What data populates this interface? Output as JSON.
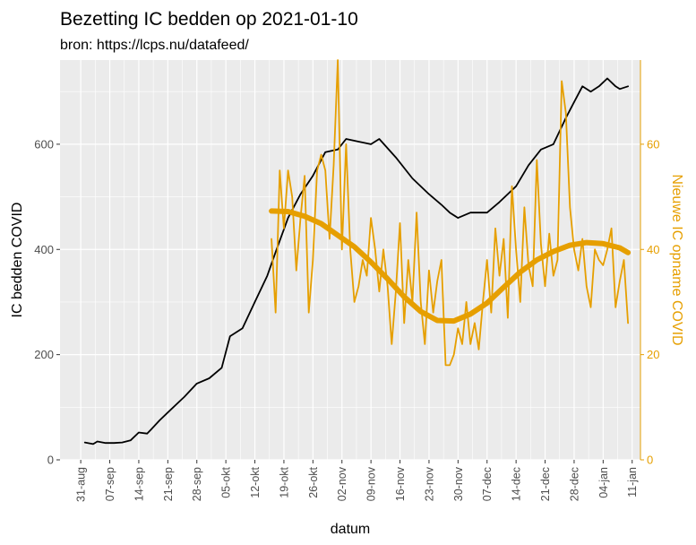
{
  "chart_data": {
    "type": "line",
    "title": "Bezetting IC bedden op 2021-01-10",
    "subtitle": "bron: https://lcps.nu/datafeed/",
    "xlabel": "datum",
    "ylabel": "IC bedden COVID",
    "y2label": "Nieuwe IC opname COVID",
    "x_range": [
      "2020-08-26",
      "2021-01-13"
    ],
    "ylim": [
      0,
      760
    ],
    "y2lim": [
      0,
      76
    ],
    "y_ticks": [
      0,
      200,
      400,
      600
    ],
    "y2_ticks": [
      0,
      20,
      40,
      60
    ],
    "x_tick_dates": [
      "2020-08-31",
      "2020-09-07",
      "2020-09-14",
      "2020-09-21",
      "2020-09-28",
      "2020-10-05",
      "2020-10-12",
      "2020-10-19",
      "2020-10-26",
      "2020-11-02",
      "2020-11-09",
      "2020-11-16",
      "2020-11-23",
      "2020-11-30",
      "2020-12-07",
      "2020-12-14",
      "2020-12-21",
      "2020-12-28",
      "2021-01-04",
      "2021-01-11"
    ],
    "x_tick_labels": [
      "31-aug",
      "07-sep",
      "14-sep",
      "21-sep",
      "28-sep",
      "05-okt",
      "12-okt",
      "19-okt",
      "26-okt",
      "02-nov",
      "09-nov",
      "16-nov",
      "23-nov",
      "30-nov",
      "07-dec",
      "14-dec",
      "21-dec",
      "28-dec",
      "04-jan",
      "11-jan"
    ],
    "grid": true,
    "colors": {
      "ic_beds": "#000000",
      "admissions": "#E69F00",
      "panel": "#EBEBEB",
      "gridline": "#FFFFFF"
    },
    "series": [
      {
        "key": "ic_beds",
        "axis": "left",
        "x": [
          "2020-09-01",
          "2020-09-03",
          "2020-09-04",
          "2020-09-06",
          "2020-09-08",
          "2020-09-10",
          "2020-09-12",
          "2020-09-14",
          "2020-09-16",
          "2020-09-17",
          "2020-09-19",
          "2020-09-21",
          "2020-09-23",
          "2020-09-25",
          "2020-09-28",
          "2020-10-01",
          "2020-10-04",
          "2020-10-06",
          "2020-10-09",
          "2020-10-12",
          "2020-10-15",
          "2020-10-17",
          "2020-10-20",
          "2020-10-23",
          "2020-10-26",
          "2020-10-29",
          "2020-11-01",
          "2020-11-03",
          "2020-11-06",
          "2020-11-09",
          "2020-11-11",
          "2020-11-15",
          "2020-11-19",
          "2020-11-23",
          "2020-11-26",
          "2020-11-28",
          "2020-11-30",
          "2020-12-03",
          "2020-12-07",
          "2020-12-10",
          "2020-12-14",
          "2020-12-17",
          "2020-12-20",
          "2020-12-23",
          "2020-12-26",
          "2020-12-28",
          "2020-12-30",
          "2021-01-01",
          "2021-01-03",
          "2021-01-05",
          "2021-01-07",
          "2021-01-08",
          "2021-01-10"
        ],
        "values": [
          33,
          30,
          35,
          32,
          32,
          33,
          37,
          52,
          50,
          58,
          75,
          90,
          105,
          120,
          145,
          155,
          175,
          235,
          250,
          300,
          350,
          395,
          460,
          505,
          540,
          585,
          590,
          610,
          605,
          600,
          610,
          575,
          535,
          505,
          485,
          470,
          460,
          470,
          470,
          490,
          520,
          560,
          590,
          600,
          650,
          680,
          710,
          700,
          710,
          725,
          710,
          705,
          710
        ]
      },
      {
        "key": "admissions",
        "axis": "right",
        "x": [
          "2020-10-16",
          "2020-10-17",
          "2020-10-18",
          "2020-10-19",
          "2020-10-20",
          "2020-10-21",
          "2020-10-22",
          "2020-10-23",
          "2020-10-24",
          "2020-10-25",
          "2020-10-26",
          "2020-10-27",
          "2020-10-28",
          "2020-10-29",
          "2020-10-30",
          "2020-10-31",
          "2020-11-01",
          "2020-11-02",
          "2020-11-03",
          "2020-11-04",
          "2020-11-05",
          "2020-11-06",
          "2020-11-07",
          "2020-11-08",
          "2020-11-09",
          "2020-11-10",
          "2020-11-11",
          "2020-11-12",
          "2020-11-13",
          "2020-11-14",
          "2020-11-15",
          "2020-11-16",
          "2020-11-17",
          "2020-11-18",
          "2020-11-19",
          "2020-11-20",
          "2020-11-21",
          "2020-11-22",
          "2020-11-23",
          "2020-11-24",
          "2020-11-25",
          "2020-11-26",
          "2020-11-27",
          "2020-11-28",
          "2020-11-29",
          "2020-11-30",
          "2020-12-01",
          "2020-12-02",
          "2020-12-03",
          "2020-12-04",
          "2020-12-05",
          "2020-12-06",
          "2020-12-07",
          "2020-12-08",
          "2020-12-09",
          "2020-12-10",
          "2020-12-11",
          "2020-12-12",
          "2020-12-13",
          "2020-12-14",
          "2020-12-15",
          "2020-12-16",
          "2020-12-17",
          "2020-12-18",
          "2020-12-19",
          "2020-12-20",
          "2020-12-21",
          "2020-12-22",
          "2020-12-23",
          "2020-12-24",
          "2020-12-25",
          "2020-12-26",
          "2020-12-27",
          "2020-12-28",
          "2020-12-29",
          "2020-12-30",
          "2020-12-31",
          "2021-01-01",
          "2021-01-02",
          "2021-01-03",
          "2021-01-04",
          "2021-01-05",
          "2021-01-06",
          "2021-01-07",
          "2021-01-08",
          "2021-01-09",
          "2021-01-10"
        ],
        "values": [
          42,
          28,
          55,
          44,
          55,
          50,
          36,
          46,
          54,
          28,
          38,
          55,
          58,
          55,
          42,
          56,
          76,
          40,
          60,
          40,
          30,
          33,
          38,
          35,
          46,
          40,
          32,
          40,
          33,
          22,
          32,
          45,
          26,
          38,
          30,
          47,
          30,
          22,
          36,
          28,
          34,
          38,
          18,
          18,
          20,
          25,
          22,
          30,
          22,
          26,
          21,
          30,
          38,
          28,
          44,
          35,
          42,
          27,
          52,
          40,
          30,
          48,
          37,
          33,
          57,
          41,
          33,
          43,
          35,
          38,
          72,
          66,
          48,
          40,
          36,
          42,
          33,
          29,
          40,
          38,
          37,
          40,
          44,
          29,
          34,
          38,
          26
        ]
      },
      {
        "key": "admissions_smooth",
        "axis": "right",
        "x": [
          "2020-10-16",
          "2020-10-20",
          "2020-10-24",
          "2020-10-28",
          "2020-11-01",
          "2020-11-05",
          "2020-11-09",
          "2020-11-13",
          "2020-11-17",
          "2020-11-21",
          "2020-11-25",
          "2020-11-29",
          "2020-12-03",
          "2020-12-07",
          "2020-12-11",
          "2020-12-15",
          "2020-12-19",
          "2020-12-23",
          "2020-12-27",
          "2020-12-31",
          "2021-01-04",
          "2021-01-08",
          "2021-01-10"
        ],
        "values": [
          47.3,
          47.2,
          46.3,
          44.9,
          42.7,
          40.5,
          37.6,
          34.4,
          31.0,
          28.2,
          26.5,
          26.4,
          27.7,
          29.8,
          32.8,
          35.7,
          38.0,
          39.6,
          40.8,
          41.3,
          41.1,
          40.3,
          39.4
        ]
      }
    ]
  }
}
